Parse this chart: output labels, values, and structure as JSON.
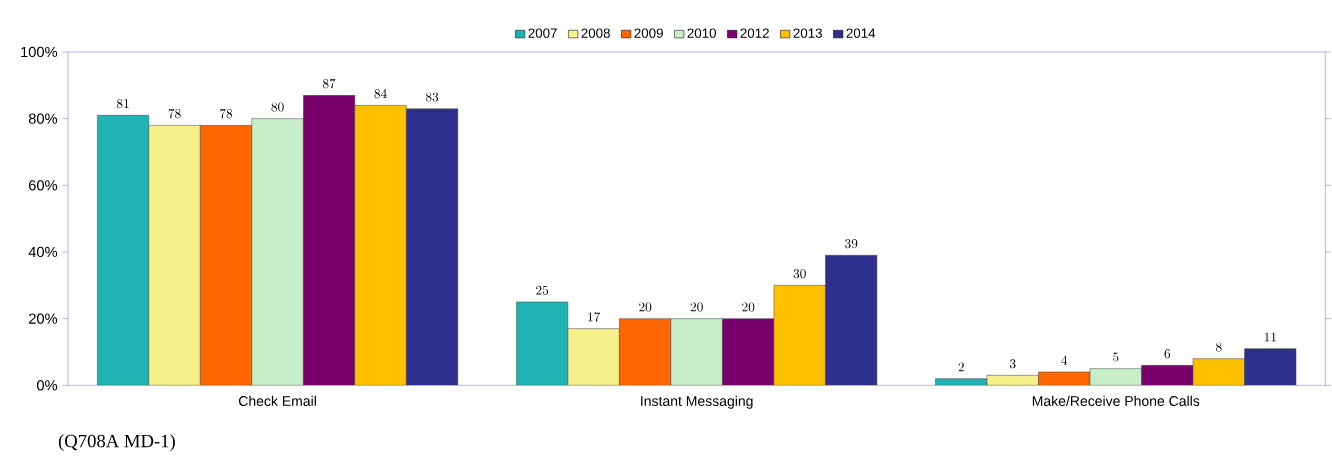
{
  "chart_data": {
    "type": "bar",
    "categories": [
      "Check Email",
      "Instant Messaging",
      "Make/Receive Phone Calls"
    ],
    "series": [
      {
        "name": "2007",
        "color": "#1fb3b3",
        "values": [
          81,
          25,
          2
        ]
      },
      {
        "name": "2008",
        "color": "#f4f08c",
        "values": [
          78,
          17,
          3
        ]
      },
      {
        "name": "2009",
        "color": "#ff6600",
        "values": [
          78,
          20,
          4
        ]
      },
      {
        "name": "2010",
        "color": "#c8eec8",
        "values": [
          80,
          20,
          5
        ]
      },
      {
        "name": "2012",
        "color": "#7a006e",
        "values": [
          87,
          20,
          6
        ]
      },
      {
        "name": "2013",
        "color": "#ffc000",
        "values": [
          84,
          30,
          8
        ]
      },
      {
        "name": "2014",
        "color": "#2e2e8c",
        "values": [
          83,
          39,
          11
        ]
      }
    ],
    "ylim": [
      0,
      100
    ],
    "yticks": [
      {
        "value": 0,
        "label": "0%"
      },
      {
        "value": 20,
        "label": "20%"
      },
      {
        "value": 40,
        "label": "40%"
      },
      {
        "value": 60,
        "label": "60%"
      },
      {
        "value": 80,
        "label": "80%"
      },
      {
        "value": 100,
        "label": "100%"
      }
    ],
    "data_labels": true,
    "legend": "top",
    "annotations": [
      "(Q708A MD-1)"
    ]
  }
}
